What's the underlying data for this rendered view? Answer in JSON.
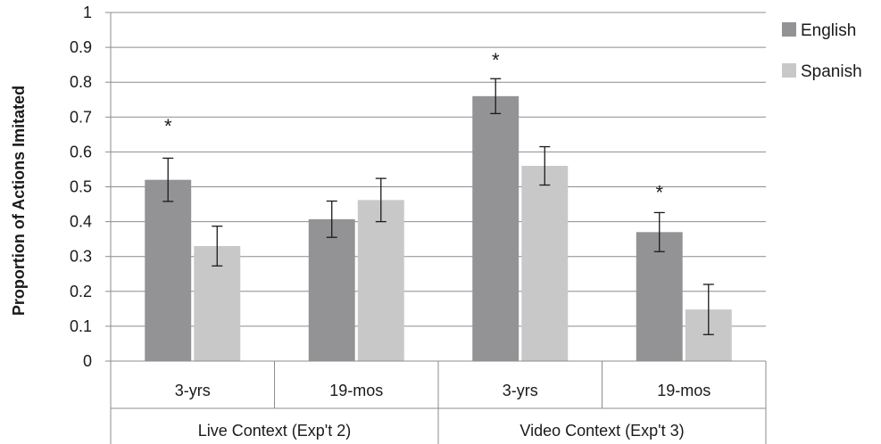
{
  "chart_data": {
    "type": "bar",
    "ylabel": "Proportion of Actions Imitated",
    "ylim": [
      0,
      1
    ],
    "yticks": [
      "0",
      "0.1",
      "0.2",
      "0.3",
      "0.4",
      "0.5",
      "0.6",
      "0.7",
      "0.8",
      "0.9",
      "1"
    ],
    "grid": true,
    "legend_position": "right",
    "groups": [
      {
        "label": "Live Context (Exp't 2)",
        "categories": [
          "3-yrs",
          "19-mos"
        ]
      },
      {
        "label": "Video Context (Exp't 3)",
        "categories": [
          "3-yrs",
          "19-mos"
        ]
      }
    ],
    "categories": [
      "3-yrs",
      "19-mos",
      "3-yrs",
      "19-mos"
    ],
    "series": [
      {
        "name": "English",
        "color": "#939396",
        "values": [
          0.52,
          0.407,
          0.76,
          0.37
        ],
        "error": [
          0.062,
          0.052,
          0.05,
          0.056
        ]
      },
      {
        "name": "Spanish",
        "color": "#c8c8c9",
        "values": [
          0.33,
          0.462,
          0.56,
          0.148
        ],
        "error": [
          0.057,
          0.062,
          0.055,
          0.072
        ]
      }
    ],
    "annotations": [
      {
        "text": "*",
        "category_index": 0,
        "series": "English",
        "y": 0.69
      },
      {
        "text": "*",
        "category_index": 2,
        "series": "English",
        "y": 0.88
      },
      {
        "text": "*",
        "category_index": 3,
        "series": "English",
        "y": 0.5
      }
    ]
  }
}
